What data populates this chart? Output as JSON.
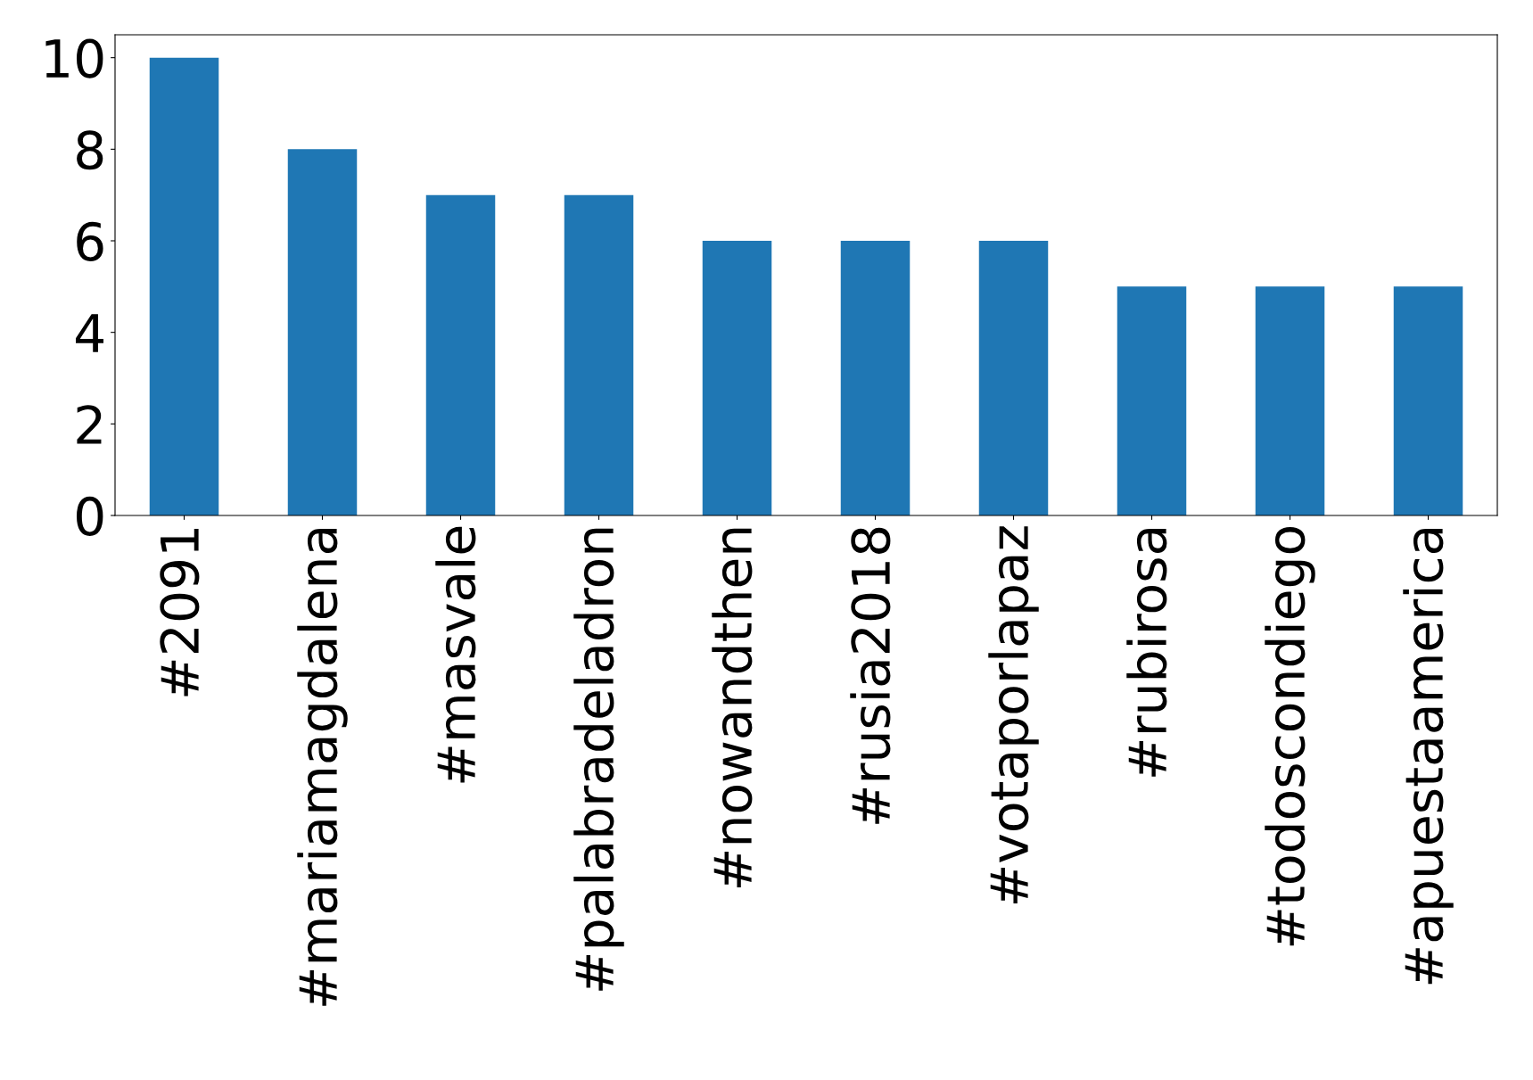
{
  "chart_data": {
    "type": "bar",
    "categories": [
      "#2091",
      "#mariamagdalena",
      "#masvale",
      "#palabradeladron",
      "#nowandthen",
      "#rusia2018",
      "#votaporlapaz",
      "#rubirosa",
      "#todoscondiego",
      "#apuestaamerica"
    ],
    "values": [
      10,
      8,
      7,
      7,
      6,
      6,
      6,
      5,
      5,
      5
    ],
    "color": "#1f77b4",
    "ylim": [
      0,
      10.5
    ],
    "yticks": [
      0,
      2,
      4,
      6,
      8,
      10
    ],
    "grid": false,
    "legend": false
  }
}
